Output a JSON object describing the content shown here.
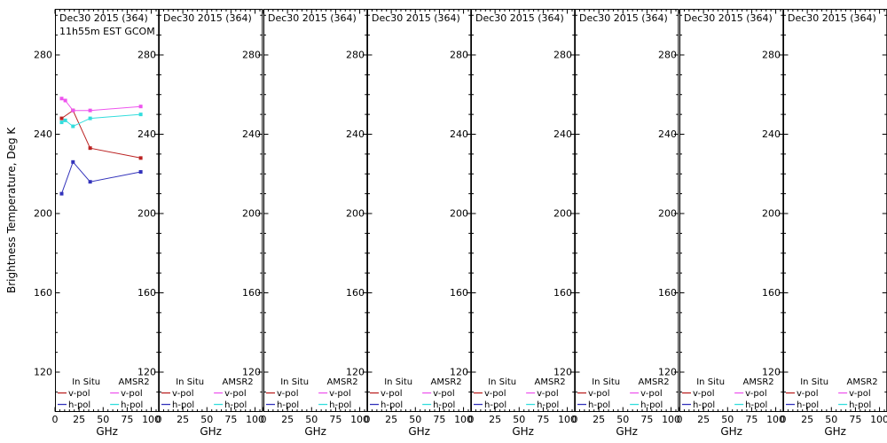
{
  "labels": {
    "ylabel": "Brightness Temperature, Deg K",
    "xlabel": "GHz"
  },
  "axes": {
    "y_ticks": [
      280,
      240,
      200,
      160,
      120
    ],
    "x_ticks": [
      0,
      25,
      50,
      75,
      100
    ]
  },
  "panels": [
    {
      "title": "Dec30 2015 (364)",
      "subtitle": "11h55m EST GCOM"
    },
    {
      "title": "Dec30 2015 (364)"
    },
    {
      "title": "Dec30 2015 (364)"
    },
    {
      "title": "Dec30 2015 (364)"
    },
    {
      "title": "Dec30 2015 (364)"
    },
    {
      "title": "Dec30 2015 (364)"
    },
    {
      "title": "Dec30 2015 (364)"
    },
    {
      "title": "Dec30 2015 (364)"
    }
  ],
  "legend": {
    "columns": [
      {
        "header": "In Situ",
        "entries": [
          {
            "label": "v-pol",
            "color": "insitu_v"
          },
          {
            "label": "h-pol",
            "color": "insitu_h"
          }
        ]
      },
      {
        "header": "AMSR2",
        "entries": [
          {
            "label": "v-pol",
            "color": "amsr2_v"
          },
          {
            "label": "h-pol",
            "color": "amsr2_h"
          }
        ]
      }
    ]
  },
  "colors": {
    "insitu_v": "#bb2222",
    "insitu_h": "#3333bb",
    "amsr2_v": "#ee55ee",
    "amsr2_h": "#33dddd",
    "frame": "#000000"
  },
  "chart_data": {
    "type": "line",
    "title": "Dec30 2015 (364) 11h55m EST GCOM",
    "xlabel": "GHz",
    "ylabel": "Brightness Temperature, Deg K",
    "xlim": [
      0,
      108
    ],
    "ylim": [
      100,
      300
    ],
    "x_ticks": [
      0,
      25,
      50,
      75,
      100
    ],
    "y_ticks": [
      120,
      160,
      200,
      240,
      280
    ],
    "grid": false,
    "legend_position": "bottom-inside",
    "data_panel_index": 0,
    "series": [
      {
        "name": "In Situ v-pol",
        "color_key": "insitu_v",
        "x": [
          6.9,
          18.7,
          36.5,
          89.0
        ],
        "y": [
          248,
          252,
          233,
          228
        ]
      },
      {
        "name": "In Situ h-pol",
        "color_key": "insitu_h",
        "x": [
          6.9,
          18.7,
          36.5,
          89.0
        ],
        "y": [
          210,
          226,
          216,
          221
        ]
      },
      {
        "name": "AMSR2 v-pol",
        "color_key": "amsr2_v",
        "x": [
          6.9,
          10.7,
          18.7,
          36.5,
          89.0
        ],
        "y": [
          258,
          257,
          252,
          252,
          254
        ]
      },
      {
        "name": "AMSR2 h-pol",
        "color_key": "amsr2_h",
        "x": [
          6.9,
          10.7,
          18.7,
          36.5,
          89.0
        ],
        "y": [
          246,
          247,
          244,
          248,
          250
        ]
      }
    ]
  }
}
